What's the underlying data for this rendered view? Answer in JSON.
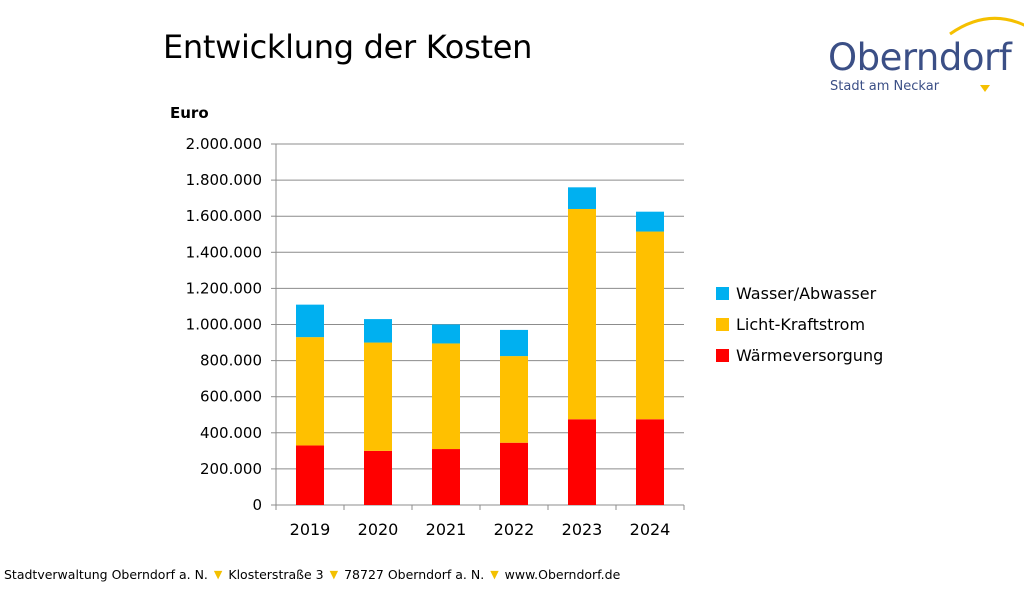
{
  "slide": {
    "title": "Entwicklung der Kosten"
  },
  "logo": {
    "name": "Oberndorf",
    "subtitle": "Stadt am Neckar",
    "arc_color": "#f5c000",
    "text_color": "#3b4f86"
  },
  "chart_data": {
    "type": "bar",
    "stacked": true,
    "ylabel": "Euro",
    "categories": [
      "2019",
      "2020",
      "2021",
      "2022",
      "2023",
      "2024"
    ],
    "series": [
      {
        "name": "Wärmeversorgung",
        "color": "#ff0000",
        "values": [
          330000,
          300000,
          310000,
          345000,
          475000,
          475000
        ]
      },
      {
        "name": "Licht-Kraftstrom",
        "color": "#ffc000",
        "values": [
          600000,
          600000,
          585000,
          480000,
          1165000,
          1040000
        ]
      },
      {
        "name": "Wasser/Abwasser",
        "color": "#00b0f0",
        "values": [
          180000,
          130000,
          105000,
          145000,
          120000,
          110000
        ]
      }
    ],
    "ylim": [
      0,
      2000000
    ],
    "yticks": [
      0,
      200000,
      400000,
      600000,
      800000,
      1000000,
      1200000,
      1400000,
      1600000,
      1800000,
      2000000
    ],
    "ytick_labels": [
      "0",
      "200.000",
      "400.000",
      "600.000",
      "800.000",
      "1.000.000",
      "1.200.000",
      "1.400.000",
      "1.600.000",
      "1.800.000",
      "2.000.000"
    ],
    "grid": true,
    "legend": {
      "position": "right",
      "items": [
        {
          "label": "Wasser/Abwasser",
          "color": "#00b0f0"
        },
        {
          "label": "Licht-Kraftstrom",
          "color": "#ffc000"
        },
        {
          "label": "Wärmeversorgung",
          "color": "#ff0000"
        }
      ]
    }
  },
  "footer": {
    "parts": [
      "Stadtverwaltung Oberndorf a. N.",
      "Klosterstraße 3",
      "78727 Oberndorf a. N.",
      "www.Oberndorf.de"
    ],
    "separator_icon": "triangle-down-icon",
    "separator_color": "#f3c000"
  }
}
